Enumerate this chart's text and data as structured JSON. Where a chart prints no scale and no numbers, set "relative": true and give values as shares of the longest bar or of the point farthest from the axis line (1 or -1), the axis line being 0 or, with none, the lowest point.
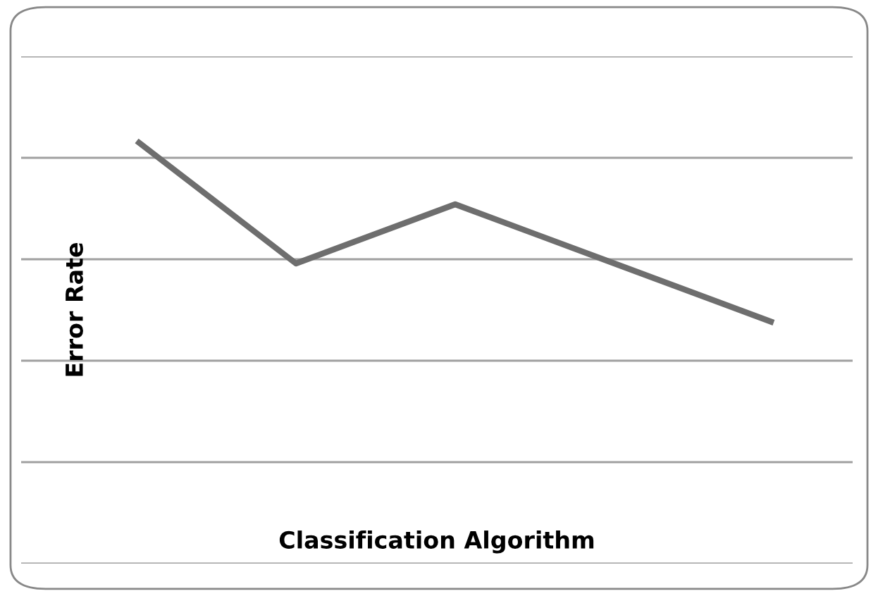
{
  "chart_data": {
    "type": "line",
    "relative": true,
    "annotations": [
      "Classification Algorithm"
    ],
    "ylabel": "Error Rate",
    "categories": [
      null,
      null,
      null,
      null,
      null
    ],
    "series": [
      {
        "values": [
          1,
          0.71,
          0.85,
          0.71,
          0.57
        ],
        "color": "#6e6e6e"
      }
    ],
    "grid": "y"
  }
}
